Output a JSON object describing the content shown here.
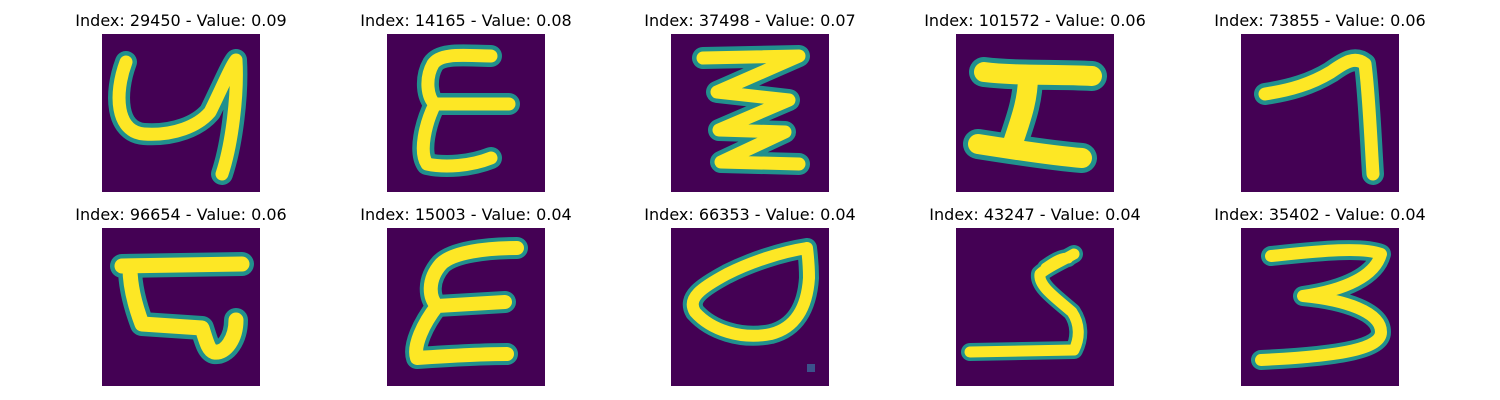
{
  "colors": {
    "background": "#440154",
    "glow": "#21908d",
    "mid": "#5ec962",
    "stroke": "#fde725"
  },
  "panels": [
    {
      "title": "Index: 29450 - Value: 0.09",
      "glyph": "curled-4-stroke"
    },
    {
      "title": "Index: 14165 - Value: 0.08",
      "glyph": "epsilon-stroke"
    },
    {
      "title": "Index: 37498 - Value: 0.07",
      "glyph": "zigzag-stroke"
    },
    {
      "title": "Index: 101572 - Value: 0.06",
      "glyph": "i-beam-stroke"
    },
    {
      "title": "Index: 73855 - Value: 0.06",
      "glyph": "seven-stroke"
    },
    {
      "title": "Index: 96654 - Value: 0.06",
      "glyph": "boxy-b-stroke"
    },
    {
      "title": "Index: 15003 - Value: 0.04",
      "glyph": "epsilon-stroke"
    },
    {
      "title": "Index: 66353 - Value: 0.04",
      "glyph": "d-loop-stroke"
    },
    {
      "title": "Index: 43247 - Value: 0.04",
      "glyph": "s-hook-stroke"
    },
    {
      "title": "Index: 35402 - Value: 0.04",
      "glyph": "three-stroke"
    }
  ]
}
